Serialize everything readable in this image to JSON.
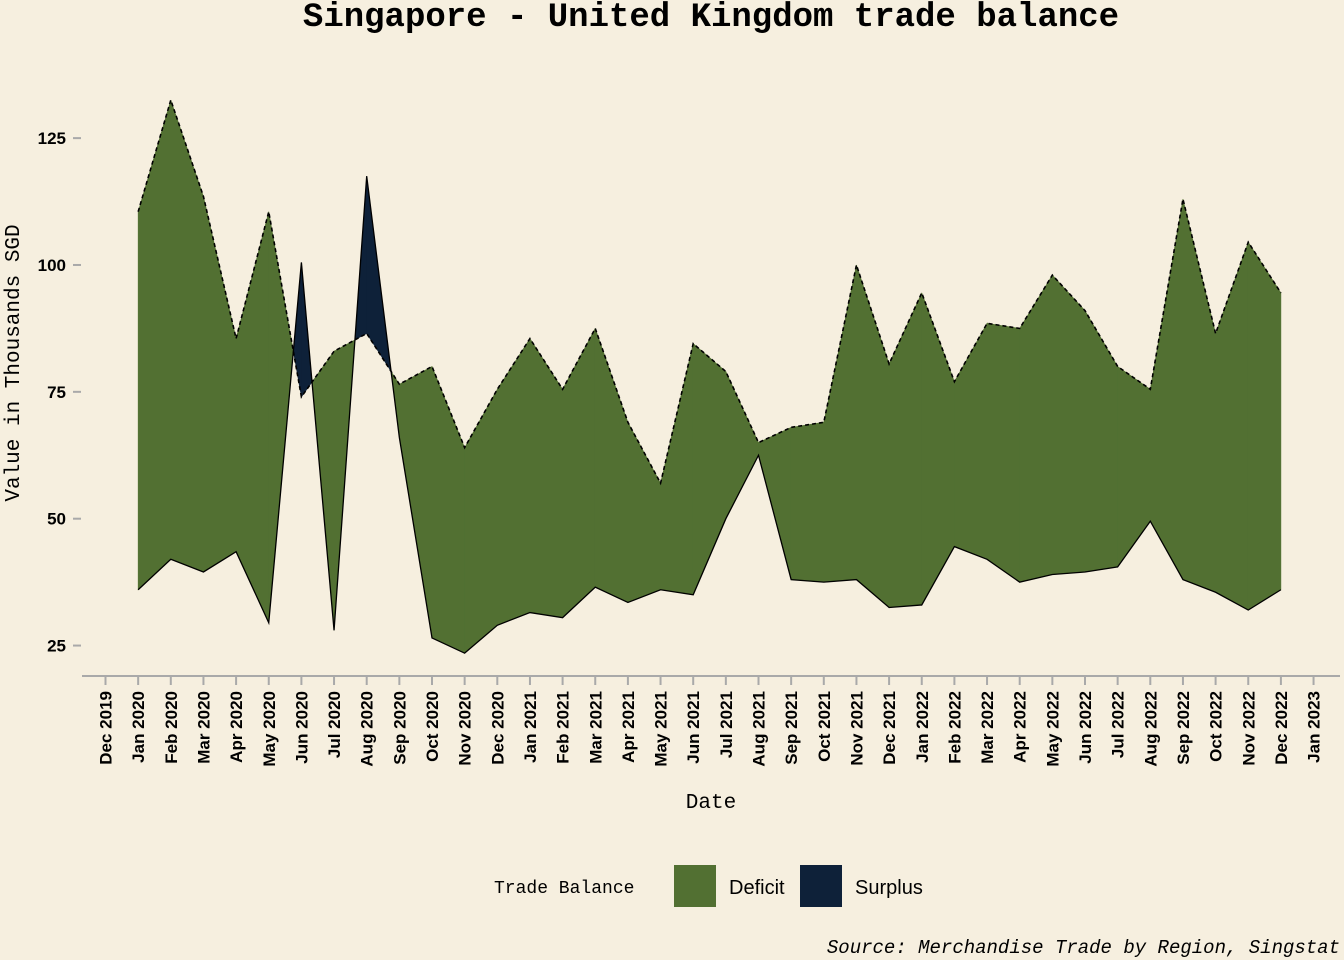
{
  "chart_data": {
    "type": "area",
    "title": "Singapore - United Kingdom trade balance",
    "xlabel": "Date",
    "ylabel": "Value in Thousands SGD",
    "caption": "Source: Merchandise Trade by Region, Singstat",
    "ylim": [
      19,
      140
    ],
    "yticks": [
      25,
      50,
      75,
      100,
      125
    ],
    "xtick_labels": [
      "Dec 2019",
      "Jan 2020",
      "Feb 2020",
      "Mar 2020",
      "Apr 2020",
      "May 2020",
      "Jun 2020",
      "Jul 2020",
      "Aug 2020",
      "Sep 2020",
      "Oct 2020",
      "Nov 2020",
      "Dec 2020",
      "Jan 2021",
      "Feb 2021",
      "Mar 2021",
      "Apr 2021",
      "May 2021",
      "Jun 2021",
      "Jul 2021",
      "Aug 2021",
      "Sep 2021",
      "Oct 2021",
      "Nov 2021",
      "Dec 2021",
      "Jan 2022",
      "Feb 2022",
      "Mar 2022",
      "Apr 2022",
      "May 2022",
      "Jun 2022",
      "Jul 2022",
      "Aug 2022",
      "Sep 2022",
      "Oct 2022",
      "Nov 2022",
      "Dec 2022",
      "Jan 2023"
    ],
    "x": [
      "Jan 2020",
      "Feb 2020",
      "Mar 2020",
      "Apr 2020",
      "May 2020",
      "Jun 2020",
      "Jul 2020",
      "Aug 2020",
      "Sep 2020",
      "Oct 2020",
      "Nov 2020",
      "Dec 2020",
      "Jan 2021",
      "Feb 2021",
      "Mar 2021",
      "Apr 2021",
      "May 2021",
      "Jun 2021",
      "Jul 2021",
      "Aug 2021",
      "Sep 2021",
      "Oct 2021",
      "Nov 2021",
      "Dec 2021",
      "Jan 2022",
      "Feb 2022",
      "Mar 2022",
      "Apr 2022",
      "May 2022",
      "Jun 2022",
      "Jul 2022",
      "Aug 2022",
      "Sep 2022",
      "Oct 2022",
      "Nov 2022",
      "Dec 2022"
    ],
    "series": [
      {
        "values": [
          110.5,
          132.5,
          113.5,
          85.5,
          110.5,
          74.0,
          83.0,
          86.5,
          76.5,
          80.0,
          64.0,
          75.5,
          85.5,
          75.5,
          87.5,
          69.0,
          57.0,
          84.5,
          79.0,
          65.0,
          68.0,
          69.0,
          100.0,
          80.5,
          94.5,
          77.0,
          88.5,
          87.5,
          98.0,
          91.0,
          80.0,
          75.5,
          113.0,
          86.5,
          104.5,
          94.5
        ]
      },
      {
        "values": [
          36.0,
          42.0,
          39.5,
          43.5,
          29.5,
          100.5,
          28.0,
          117.5,
          66.0,
          26.5,
          23.5,
          29.0,
          31.5,
          30.5,
          36.5,
          33.5,
          36.0,
          35.0,
          50.0,
          62.5,
          38.0,
          37.5,
          38.0,
          32.5,
          33.0,
          44.5,
          42.0,
          37.5,
          39.0,
          39.5,
          40.5,
          49.5,
          38.0,
          35.5,
          32.0,
          36.0
        ]
      }
    ],
    "categories": [
      {
        "name": "Deficit",
        "color": "#527032"
      },
      {
        "name": "Surplus",
        "color": "#0e2139"
      }
    ]
  },
  "legend": {
    "title": "Trade Balance",
    "placement": "bottom",
    "items": [
      {
        "label": "Deficit",
        "color": "#527032"
      },
      {
        "label": "Surplus",
        "color": "#0e2139"
      }
    ]
  }
}
